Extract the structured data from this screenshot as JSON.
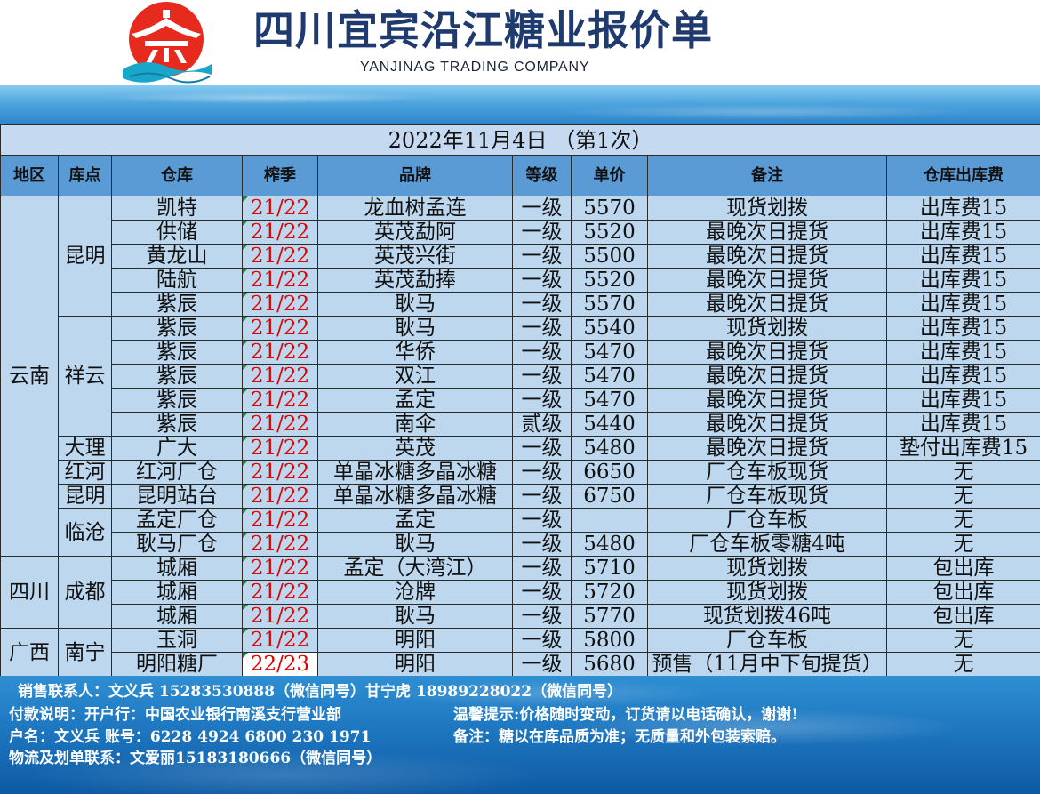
{
  "header": {
    "title": "四川宜宾沿江糖业报价单",
    "subtitle": "YANJINAG TRADING COMPANY"
  },
  "table": {
    "date_label": "2022年11月4日 （第1次）",
    "columns": [
      "地区",
      "库点",
      "仓库",
      "榨季",
      "品牌",
      "等级",
      "单价",
      "备注",
      "仓库出库费"
    ],
    "regions": [
      {
        "name": "云南",
        "locations": [
          {
            "name": "昆明",
            "rows": [
              {
                "warehouse": "凯特",
                "season": "21/22",
                "brand": "龙血树孟连",
                "grade": "一级",
                "price": "5570",
                "note": "现货划拨",
                "fee": "出库费15"
              },
              {
                "warehouse": "供储",
                "season": "21/22",
                "brand": "英茂勐阿",
                "grade": "一级",
                "price": "5520",
                "note": "最晚次日提货",
                "fee": "出库费15"
              },
              {
                "warehouse": "黄龙山",
                "season": "21/22",
                "brand": "英茂兴街",
                "grade": "一级",
                "price": "5500",
                "note": "最晚次日提货",
                "fee": "出库费15"
              },
              {
                "warehouse": "陆航",
                "season": "21/22",
                "brand": "英茂勐捧",
                "grade": "一级",
                "price": "5520",
                "note": "最晚次日提货",
                "fee": "出库费15"
              },
              {
                "warehouse": "紫辰",
                "season": "21/22",
                "brand": "耿马",
                "grade": "一级",
                "price": "5570",
                "note": "最晚次日提货",
                "fee": "出库费15"
              }
            ]
          },
          {
            "name": "祥云",
            "rows": [
              {
                "warehouse": "紫辰",
                "season": "21/22",
                "brand": "耿马",
                "grade": "一级",
                "price": "5540",
                "note": "现货划拨",
                "fee": "出库费15"
              },
              {
                "warehouse": "紫辰",
                "season": "21/22",
                "brand": "华侨",
                "grade": "一级",
                "price": "5470",
                "note": "最晚次日提货",
                "fee": "出库费15"
              },
              {
                "warehouse": "紫辰",
                "season": "21/22",
                "brand": "双江",
                "grade": "一级",
                "price": "5470",
                "note": "最晚次日提货",
                "fee": "出库费15"
              },
              {
                "warehouse": "紫辰",
                "season": "21/22",
                "brand": "孟定",
                "grade": "一级",
                "price": "5470",
                "note": "最晚次日提货",
                "fee": "出库费15"
              },
              {
                "warehouse": "紫辰",
                "season": "21/22",
                "brand": "南伞",
                "grade": "贰级",
                "price": "5440",
                "note": "最晚次日提货",
                "fee": "出库费15"
              }
            ]
          },
          {
            "name": "大理",
            "rows": [
              {
                "warehouse": "广大",
                "season": "21/22",
                "brand": "英茂",
                "grade": "一级",
                "price": "5480",
                "note": "最晚次日提货",
                "fee": "垫付出库费15"
              }
            ]
          },
          {
            "name": "红河",
            "rows": [
              {
                "warehouse": "红河厂仓",
                "season": "21/22",
                "brand": "单晶冰糖多晶冰糖",
                "grade": "一级",
                "price": "6650",
                "note": "厂仓车板现货",
                "fee": "无"
              }
            ]
          },
          {
            "name": "昆明",
            "rows": [
              {
                "warehouse": "昆明站台",
                "season": "21/22",
                "brand": "单晶冰糖多晶冰糖",
                "grade": "一级",
                "price": "6750",
                "note": "厂仓车板现货",
                "fee": "无"
              }
            ]
          },
          {
            "name": "临沧",
            "rows": [
              {
                "warehouse": "孟定厂仓",
                "season": "21/22",
                "brand": "孟定",
                "grade": "一级",
                "price": "",
                "note": "厂仓车板",
                "fee": "无"
              },
              {
                "warehouse": "耿马厂仓",
                "season": "21/22",
                "brand": "耿马",
                "grade": "一级",
                "price": "5480",
                "note": "厂仓车板零糖4吨",
                "fee": "无"
              }
            ]
          }
        ]
      },
      {
        "name": "四川",
        "locations": [
          {
            "name": "成都",
            "rows": [
              {
                "warehouse": "城厢",
                "season": "21/22",
                "brand": "孟定（大湾江）",
                "grade": "一级",
                "price": "5710",
                "note": "现货划拨",
                "fee": "包出库"
              },
              {
                "warehouse": "城厢",
                "season": "21/22",
                "brand": "沧牌",
                "grade": "一级",
                "price": "5720",
                "note": "现货划拨",
                "fee": "包出库"
              },
              {
                "warehouse": "城厢",
                "season": "21/22",
                "brand": "耿马",
                "grade": "一级",
                "price": "5770",
                "note": "现货划拨46吨",
                "fee": "包出库"
              }
            ]
          }
        ]
      },
      {
        "name": "广西",
        "locations": [
          {
            "name": "南宁",
            "rows": [
              {
                "warehouse": "玉洞",
                "season": "21/22",
                "brand": "明阳",
                "grade": "一级",
                "price": "5800",
                "note": "厂仓车板",
                "fee": "无"
              },
              {
                "warehouse": "明阳糖厂",
                "season": "22/23",
                "brand": "明阳",
                "grade": "一级",
                "price": "5680",
                "note": "预售（11月中下旬提货）",
                "fee": "无"
              }
            ]
          }
        ]
      }
    ]
  },
  "footer": {
    "sales_contact": "销售联系人：文义兵 15283530888（微信同号）甘宁虎 18989228022（微信同号）",
    "payment": "付款说明：开户行：中国农业银行南溪支行营业部",
    "account": "户名：文义兵  账号：6228 4924 6800 230 1971",
    "logistics": "物流及划单联系：文爱丽15183180666（微信同号）",
    "tip": "温馨提示:价格随时变动，订货请以电话确认，谢谢!",
    "remark": "备注：糖以在库品质为准；无质量和外包装索赔。"
  },
  "icons": {
    "logo": "company-logo"
  },
  "colors": {
    "title": "#1f3a6e",
    "cell_bg": "#bdd7ee",
    "date_bg": "#c5d9f1",
    "header_bg": "#5b9bd5",
    "season_text": "#e00000",
    "footer_text": "#ffffff",
    "logo_red": "#e62a1d",
    "logo_wave": "#19a7c9"
  }
}
